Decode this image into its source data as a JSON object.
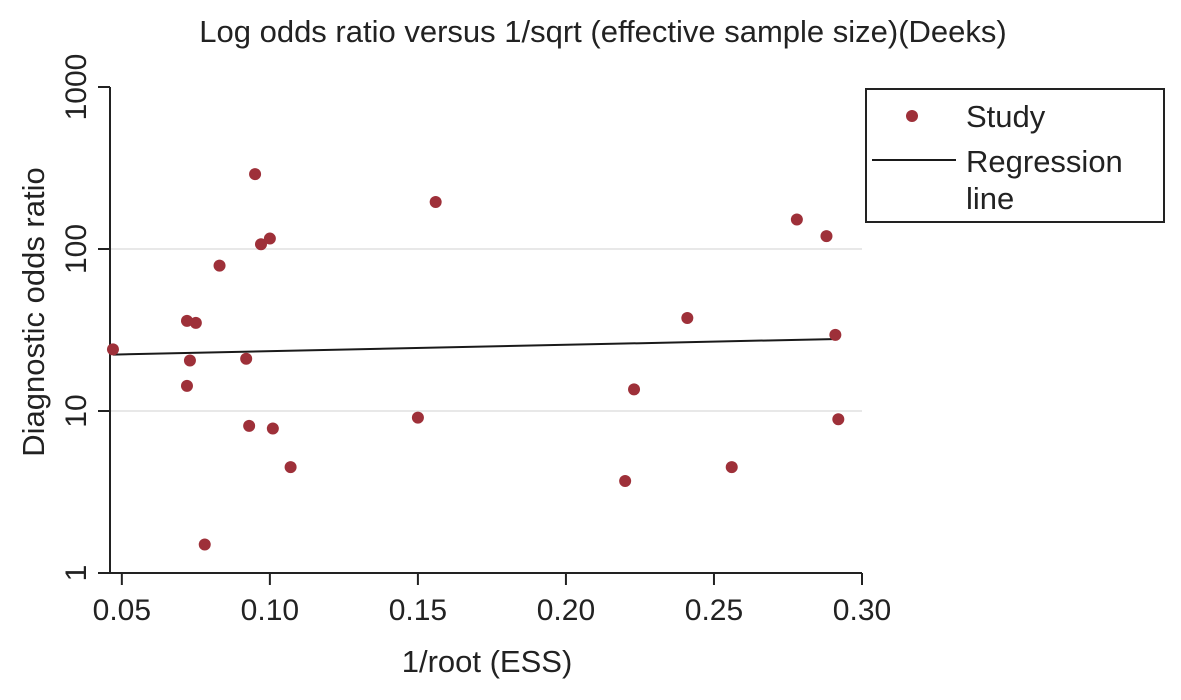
{
  "chart_data": {
    "type": "scatter",
    "title": "Log odds ratio versus 1/sqrt (effective sample size)(Deeks)",
    "xlabel": "1/root (ESS)",
    "ylabel": "Diagnostic odds ratio",
    "xlim": [
      0.046,
      0.3
    ],
    "ylim": [
      1,
      1000
    ],
    "y_scale": "log",
    "x_ticks": [
      0.05,
      0.1,
      0.15,
      0.2,
      0.25,
      0.3
    ],
    "x_tick_labels": [
      "0.05",
      "0.10",
      "0.15",
      "0.20",
      "0.25",
      "0.30"
    ],
    "y_ticks": [
      1,
      10,
      100,
      1000
    ],
    "y_tick_labels": [
      "1",
      "10",
      "100",
      "1000"
    ],
    "grid": "horizontal",
    "legend_position": "right",
    "colors": {
      "points": "#9e3039",
      "line": "#1a1a1a",
      "grid": "#e8e8e8",
      "axis": "#222222"
    },
    "series": [
      {
        "name": "Study",
        "kind": "scatter",
        "points": [
          {
            "x": 0.047,
            "y": 24
          },
          {
            "x": 0.072,
            "y": 36
          },
          {
            "x": 0.073,
            "y": 20.5
          },
          {
            "x": 0.072,
            "y": 14.3
          },
          {
            "x": 0.075,
            "y": 35
          },
          {
            "x": 0.078,
            "y": 1.5
          },
          {
            "x": 0.083,
            "y": 79
          },
          {
            "x": 0.092,
            "y": 21
          },
          {
            "x": 0.093,
            "y": 8.1
          },
          {
            "x": 0.095,
            "y": 290
          },
          {
            "x": 0.097,
            "y": 107
          },
          {
            "x": 0.1,
            "y": 116
          },
          {
            "x": 0.101,
            "y": 7.8
          },
          {
            "x": 0.107,
            "y": 4.5
          },
          {
            "x": 0.15,
            "y": 9.1
          },
          {
            "x": 0.156,
            "y": 195
          },
          {
            "x": 0.22,
            "y": 3.7
          },
          {
            "x": 0.223,
            "y": 13.6
          },
          {
            "x": 0.241,
            "y": 37.5
          },
          {
            "x": 0.256,
            "y": 4.5
          },
          {
            "x": 0.278,
            "y": 152
          },
          {
            "x": 0.288,
            "y": 120
          },
          {
            "x": 0.291,
            "y": 29.5
          },
          {
            "x": 0.292,
            "y": 8.9
          }
        ]
      },
      {
        "name": "Regression line",
        "name_lines": [
          "Regression",
          "line"
        ],
        "kind": "line",
        "points": [
          {
            "x": 0.047,
            "y": 22.3
          },
          {
            "x": 0.29,
            "y": 27.8
          }
        ]
      }
    ]
  }
}
